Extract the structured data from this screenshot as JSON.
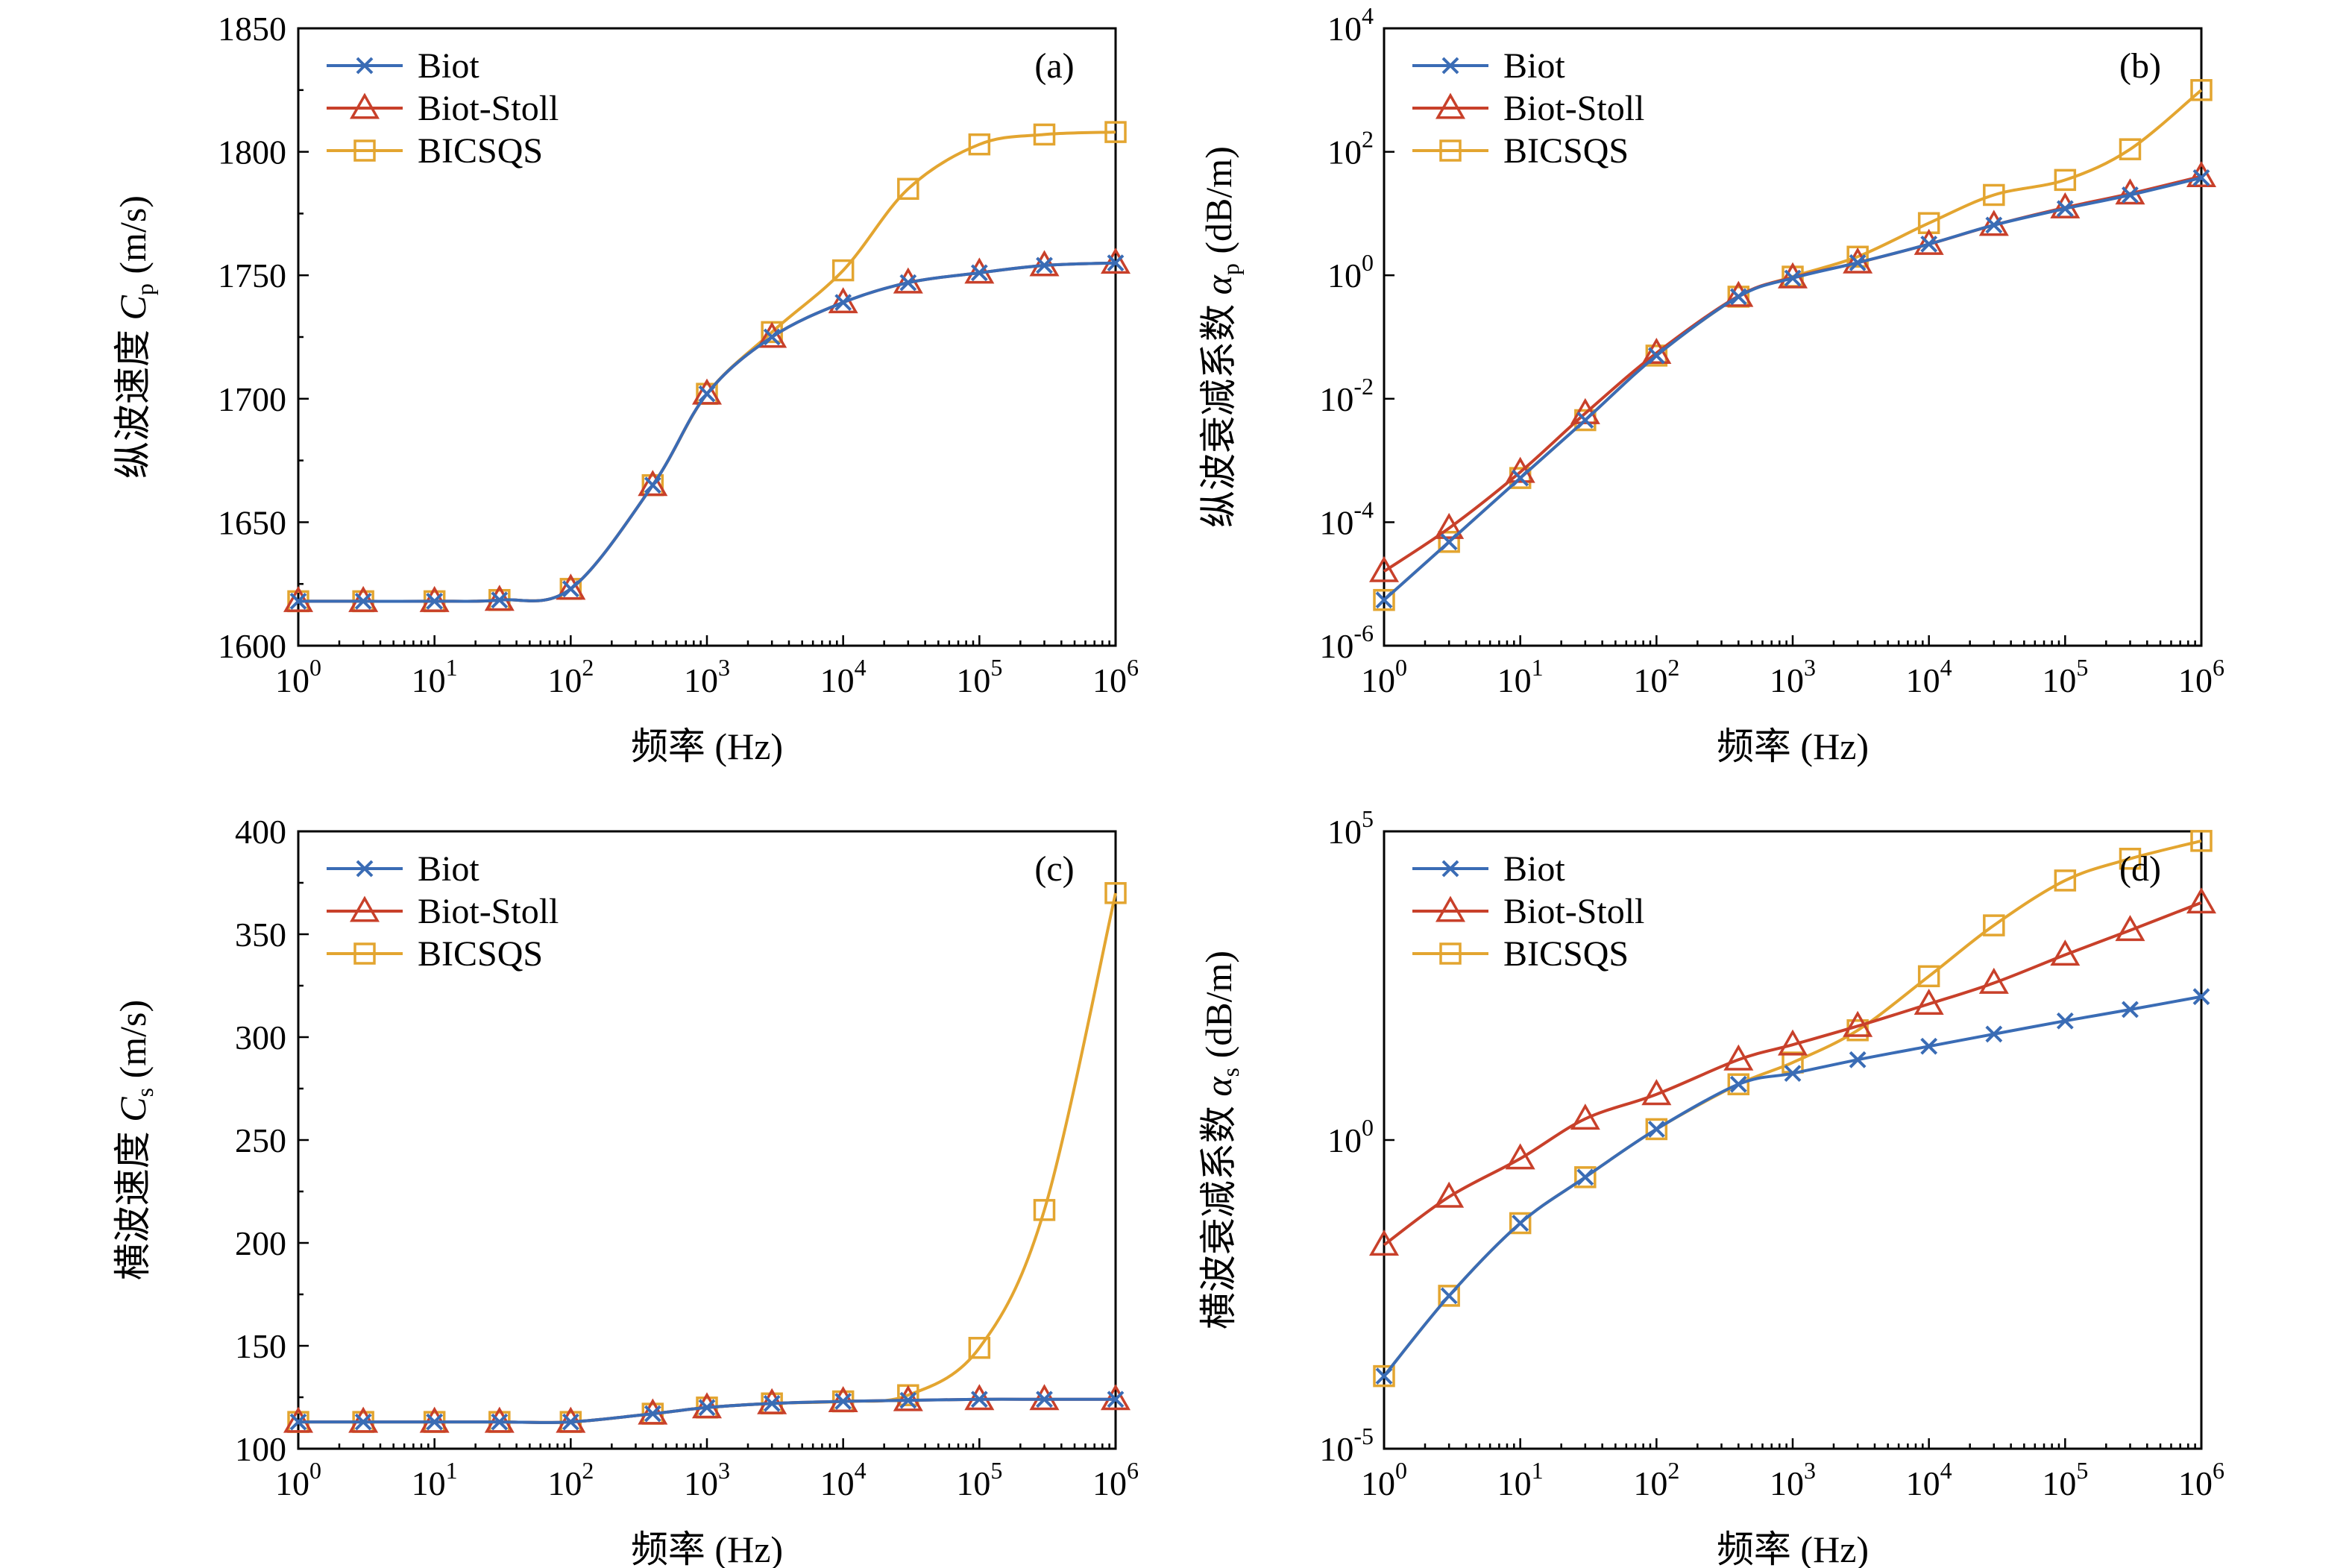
{
  "colors": {
    "Biot": "#3a6cb5",
    "Biot-Stoll": "#c8402a",
    "BICSQS": "#e3a530"
  },
  "chart_data": [
    {
      "type": "line",
      "panel": "(a)",
      "xscale": "log",
      "yscale": "linear",
      "xlim": [
        1,
        1000000
      ],
      "ylim": [
        1600,
        1850
      ],
      "yticks": [
        1600,
        1650,
        1700,
        1750,
        1800,
        1850
      ],
      "xlabel": "频率 (Hz)",
      "ylabel_main": "纵波速度 ",
      "ylabel_sym": "C",
      "ylabel_sub": "p",
      "ylabel_unit": " (m/s)",
      "legend_position": "top-left",
      "x": [
        1,
        3,
        10,
        30,
        100,
        400,
        1000,
        3000,
        10000,
        30000,
        100000,
        300000,
        1000000
      ],
      "series": [
        {
          "name": "Biot",
          "marker": "x",
          "values": [
            1618,
            1618,
            1618,
            1618.5,
            1623,
            1665,
            1702,
            1725,
            1739,
            1747,
            1751,
            1754,
            1755
          ]
        },
        {
          "name": "Biot-Stoll",
          "marker": "triangle",
          "values": [
            1618,
            1618,
            1618,
            1618.5,
            1623,
            1665,
            1702,
            1725,
            1739,
            1747,
            1751,
            1754,
            1755
          ]
        },
        {
          "name": "BICSQS",
          "marker": "square",
          "values": [
            1618,
            1618,
            1618,
            1618.5,
            1623,
            1665,
            1702,
            1727,
            1752,
            1785,
            1803,
            1807,
            1808
          ]
        }
      ]
    },
    {
      "type": "line",
      "panel": "(b)",
      "xscale": "log",
      "yscale": "log",
      "xlim": [
        1,
        1000000
      ],
      "ylim": [
        1e-06,
        10000
      ],
      "yticks": [
        1e-06,
        0.0001,
        0.01,
        1,
        100,
        10000
      ],
      "xlabel": "频率 (Hz)",
      "ylabel_main": "纵波衰减系数 ",
      "ylabel_sym": "α",
      "ylabel_sub": "p",
      "ylabel_unit": " (dB/m)",
      "legend_position": "top-left",
      "x": [
        1,
        3,
        10,
        30,
        100,
        400,
        1000,
        3000,
        10000,
        30000,
        100000,
        300000,
        1000000
      ],
      "series": [
        {
          "name": "Biot",
          "marker": "x",
          "values": [
            5.5e-06,
            4.8e-05,
            0.00052,
            0.0045,
            0.05,
            0.45,
            0.9,
            1.6,
            3.2,
            6.5,
            12,
            20,
            38
          ]
        },
        {
          "name": "Biot-Stoll",
          "marker": "triangle",
          "values": [
            1.6e-05,
            8e-05,
            0.00065,
            0.0058,
            0.055,
            0.46,
            0.92,
            1.6,
            3.2,
            6.5,
            12.5,
            21,
            40
          ]
        },
        {
          "name": "BICSQS",
          "marker": "square",
          "values": [
            5.5e-06,
            4.8e-05,
            0.00052,
            0.0045,
            0.05,
            0.45,
            0.95,
            2.0,
            7.0,
            20,
            35,
            110,
            1000
          ]
        }
      ]
    },
    {
      "type": "line",
      "panel": "(c)",
      "xscale": "log",
      "yscale": "linear",
      "xlim": [
        1,
        1000000
      ],
      "ylim": [
        100,
        400
      ],
      "yticks": [
        100,
        150,
        200,
        250,
        300,
        350,
        400
      ],
      "xlabel": "频率 (Hz)",
      "ylabel_main": "横波速度 ",
      "ylabel_sym": "C",
      "ylabel_sub": "s",
      "ylabel_unit": " (m/s)",
      "legend_position": "top-left",
      "x": [
        1,
        3,
        10,
        30,
        100,
        400,
        1000,
        3000,
        10000,
        30000,
        100000,
        300000,
        1000000
      ],
      "series": [
        {
          "name": "Biot",
          "marker": "x",
          "values": [
            113,
            113,
            113,
            113,
            113,
            117,
            120,
            122,
            123,
            123.5,
            124,
            124,
            124
          ]
        },
        {
          "name": "Biot-Stoll",
          "marker": "triangle",
          "values": [
            113,
            113,
            113,
            113,
            113,
            117,
            120,
            122,
            123,
            123.5,
            124,
            124,
            124
          ]
        },
        {
          "name": "BICSQS",
          "marker": "square",
          "values": [
            113,
            113,
            113,
            113,
            113,
            117,
            120,
            122,
            123,
            126,
            149,
            216,
            370
          ]
        }
      ]
    },
    {
      "type": "line",
      "panel": "(d)",
      "xscale": "log",
      "yscale": "log",
      "xlim": [
        1,
        1000000
      ],
      "ylim": [
        1e-05,
        100000
      ],
      "yticks": [
        1e-05,
        1,
        100000
      ],
      "xlabel": "频率 (Hz)",
      "ylabel_main": "横波衰减系数 ",
      "ylabel_sym": "α",
      "ylabel_sub": "s",
      "ylabel_unit": " (dB/m)",
      "legend_position": "top-left",
      "x": [
        1,
        3,
        10,
        30,
        100,
        400,
        1000,
        3000,
        10000,
        30000,
        100000,
        300000,
        1000000
      ],
      "series": [
        {
          "name": "Biot",
          "marker": "x",
          "values": [
            0.00015,
            0.003,
            0.045,
            0.25,
            1.5,
            8,
            12,
            20,
            33,
            52,
            85,
            130,
            210
          ]
        },
        {
          "name": "Biot-Stoll",
          "marker": "triangle",
          "values": [
            0.02,
            0.12,
            0.5,
            2.2,
            5.5,
            20,
            35,
            70,
            160,
            350,
            1000,
            2500,
            7000
          ]
        },
        {
          "name": "BICSQS",
          "marker": "square",
          "values": [
            0.00015,
            0.003,
            0.045,
            0.25,
            1.5,
            8,
            18,
            60,
            450,
            3000,
            16000,
            36000,
            70000
          ]
        }
      ]
    }
  ]
}
